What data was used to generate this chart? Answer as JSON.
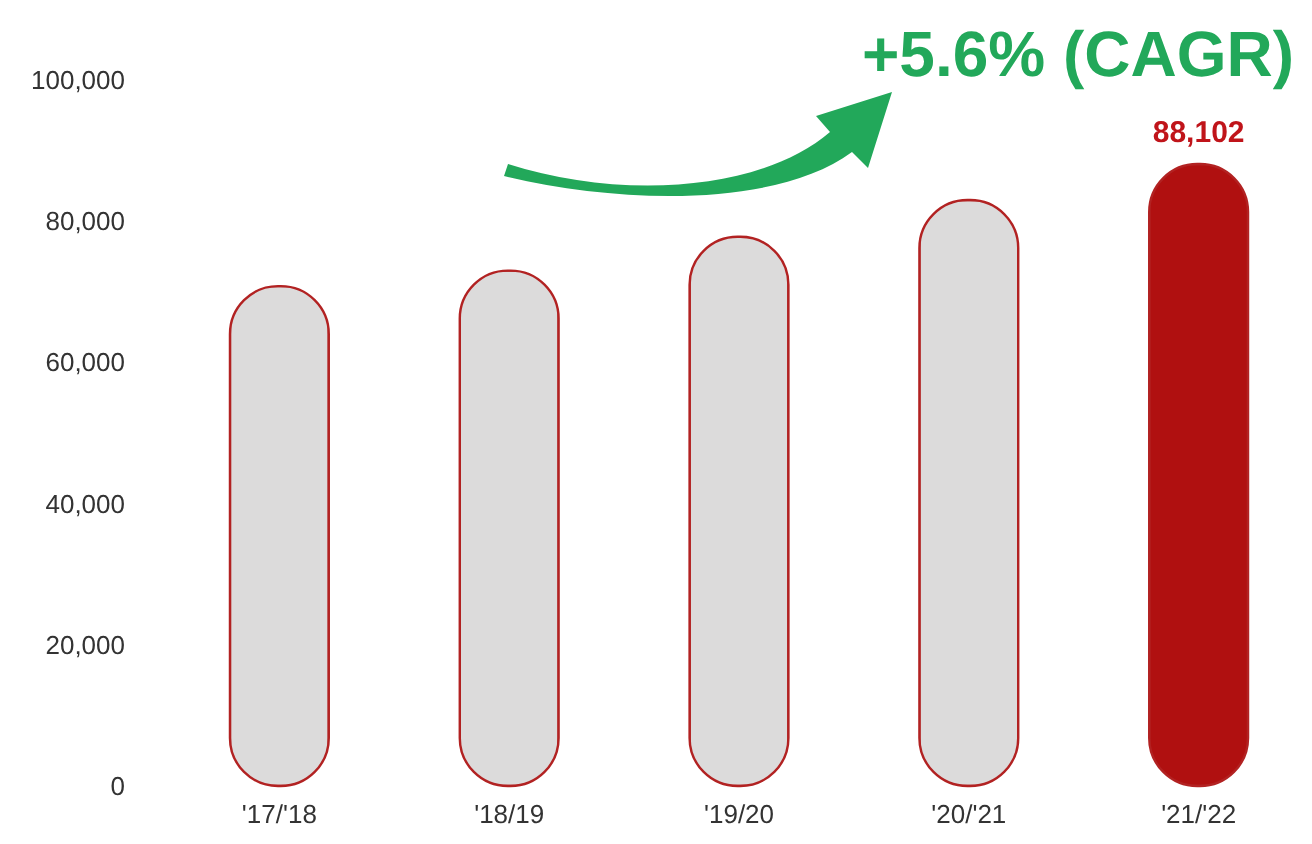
{
  "chart_data": {
    "type": "bar",
    "categories": [
      "'17/'18",
      "'18/19",
      "'19/20",
      "'20/'21",
      "'21/'22"
    ],
    "values": [
      70800,
      73000,
      77800,
      83000,
      88102
    ],
    "colors": [
      "#dcdbdb",
      "#dcdbdb",
      "#dcdbdb",
      "#dcdbdb",
      "#b01010"
    ],
    "value_labels": [
      null,
      null,
      null,
      null,
      "88,102"
    ],
    "annotations": [
      "+5.6% (CAGR)"
    ],
    "ylim": [
      0,
      100000
    ],
    "yticks": [
      0,
      {
        "value": 20000,
        "label": "20,000"
      },
      {
        "value": 40000,
        "label": "40,000"
      },
      {
        "value": 60000,
        "label": "60,000"
      },
      {
        "value": 80000,
        "label": "80,000"
      },
      {
        "value": 100000,
        "label": "100,000"
      }
    ],
    "grid": false
  }
}
